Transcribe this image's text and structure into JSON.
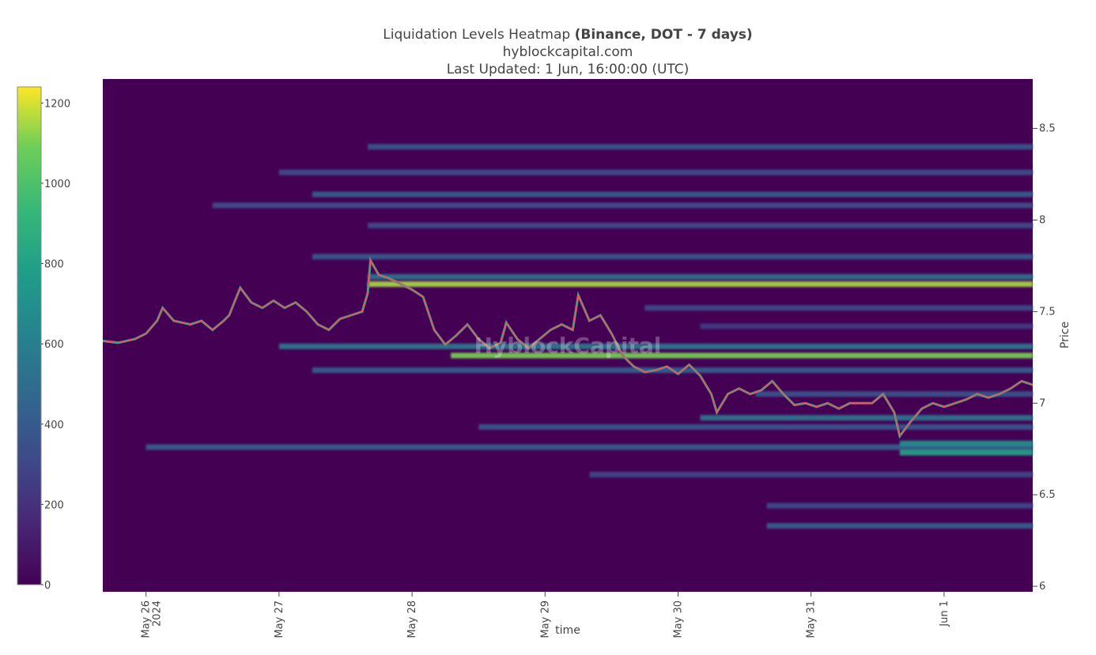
{
  "chart_data": {
    "type": "heatmap",
    "title": {
      "prefix": "Liquidation Levels Heatmap ",
      "bold": "(Binance, DOT - 7 days)",
      "line2": "hyblockcapital.com",
      "line3": "Last Updated: 1 Jun, 16:00:00 (UTC)"
    },
    "watermark": "HyblockCapital",
    "xlabel": "time",
    "ylabel": "Price",
    "x_ticks": [
      {
        "l1": "May 26",
        "l2": "2024",
        "t": 0
      },
      {
        "l1": "May 27",
        "l2": "",
        "t": 24
      },
      {
        "l1": "May 28",
        "l2": "",
        "t": 48
      },
      {
        "l1": "May 29",
        "l2": "",
        "t": 72
      },
      {
        "l1": "May 30",
        "l2": "",
        "t": 96
      },
      {
        "l1": "May 31",
        "l2": "",
        "t": 120
      },
      {
        "l1": "Jun 1",
        "l2": "",
        "t": 144
      }
    ],
    "y_ticks": [
      {
        "label": "6",
        "v": 6
      },
      {
        "label": "6.5",
        "v": 6.5
      },
      {
        "label": "7",
        "v": 7
      },
      {
        "label": "7.5",
        "v": 7.5
      },
      {
        "label": "8",
        "v": 8
      },
      {
        "label": "8.5",
        "v": 8.5
      }
    ],
    "xlim_hours_from_may26": [
      -7.8,
      160
    ],
    "ylim": [
      5.97,
      8.77
    ],
    "colorscale": {
      "name": "viridis",
      "range": [
        0,
        1240
      ],
      "ticks": [
        {
          "label": "0",
          "v": 0
        },
        {
          "label": "200",
          "v": 200
        },
        {
          "label": "400",
          "v": 400
        },
        {
          "label": "600",
          "v": 600
        },
        {
          "label": "800",
          "v": 800
        },
        {
          "label": "1000",
          "v": 1000
        },
        {
          "label": "1200",
          "v": 1200
        }
      ]
    },
    "price_path": [
      [
        -7.8,
        7.34
      ],
      [
        -5,
        7.33
      ],
      [
        -2,
        7.35
      ],
      [
        0,
        7.38
      ],
      [
        2,
        7.45
      ],
      [
        3,
        7.52
      ],
      [
        5,
        7.45
      ],
      [
        8,
        7.43
      ],
      [
        10,
        7.45
      ],
      [
        12,
        7.4
      ],
      [
        14,
        7.45
      ],
      [
        15,
        7.48
      ],
      [
        17,
        7.63
      ],
      [
        19,
        7.55
      ],
      [
        21,
        7.52
      ],
      [
        23,
        7.56
      ],
      [
        25,
        7.52
      ],
      [
        27,
        7.55
      ],
      [
        29,
        7.5
      ],
      [
        31,
        7.43
      ],
      [
        33,
        7.4
      ],
      [
        35,
        7.46
      ],
      [
        37,
        7.48
      ],
      [
        39,
        7.5
      ],
      [
        40,
        7.6
      ],
      [
        40.5,
        7.78
      ],
      [
        42,
        7.7
      ],
      [
        44,
        7.68
      ],
      [
        46,
        7.65
      ],
      [
        48,
        7.62
      ],
      [
        50,
        7.58
      ],
      [
        52,
        7.4
      ],
      [
        54,
        7.32
      ],
      [
        56,
        7.37
      ],
      [
        58,
        7.43
      ],
      [
        60,
        7.35
      ],
      [
        62,
        7.3
      ],
      [
        64,
        7.33
      ],
      [
        65,
        7.44
      ],
      [
        67,
        7.35
      ],
      [
        69,
        7.3
      ],
      [
        71,
        7.35
      ],
      [
        73,
        7.4
      ],
      [
        75,
        7.43
      ],
      [
        77,
        7.4
      ],
      [
        78,
        7.59
      ],
      [
        80,
        7.45
      ],
      [
        82,
        7.48
      ],
      [
        84,
        7.38
      ],
      [
        86,
        7.26
      ],
      [
        88,
        7.2
      ],
      [
        90,
        7.17
      ],
      [
        92,
        7.18
      ],
      [
        94,
        7.2
      ],
      [
        96,
        7.16
      ],
      [
        98,
        7.21
      ],
      [
        100,
        7.15
      ],
      [
        102,
        7.05
      ],
      [
        103,
        6.95
      ],
      [
        105,
        7.05
      ],
      [
        107,
        7.08
      ],
      [
        109,
        7.05
      ],
      [
        111,
        7.07
      ],
      [
        113,
        7.12
      ],
      [
        115,
        7.05
      ],
      [
        117,
        6.99
      ],
      [
        119,
        7.0
      ],
      [
        121,
        6.98
      ],
      [
        123,
        7.0
      ],
      [
        125,
        6.97
      ],
      [
        127,
        7.0
      ],
      [
        129,
        7.0
      ],
      [
        131,
        7.0
      ],
      [
        133,
        7.05
      ],
      [
        135,
        6.95
      ],
      [
        136,
        6.82
      ],
      [
        138,
        6.9
      ],
      [
        140,
        6.97
      ],
      [
        142,
        7.0
      ],
      [
        144,
        6.98
      ],
      [
        146,
        7.0
      ],
      [
        148,
        7.02
      ],
      [
        150,
        7.05
      ],
      [
        152,
        7.03
      ],
      [
        154,
        7.05
      ],
      [
        156,
        7.08
      ],
      [
        158,
        7.12
      ],
      [
        160,
        7.1
      ]
    ],
    "heat_bands": [
      {
        "price": 7.65,
        "start": 40,
        "intensity": 1150
      },
      {
        "price": 7.69,
        "start": 40,
        "intensity": 520
      },
      {
        "price": 7.26,
        "start": 55,
        "intensity": 1100
      },
      {
        "price": 7.31,
        "start": 24,
        "intensity": 560
      },
      {
        "price": 7.18,
        "start": 30,
        "intensity": 420
      },
      {
        "price": 6.76,
        "start": 0,
        "intensity": 420
      },
      {
        "price": 6.73,
        "start": 136,
        "intensity": 820
      },
      {
        "price": 6.78,
        "start": 136,
        "intensity": 720
      },
      {
        "price": 6.92,
        "start": 100,
        "intensity": 540
      },
      {
        "price": 6.87,
        "start": 60,
        "intensity": 380
      },
      {
        "price": 7.8,
        "start": 30,
        "intensity": 400
      },
      {
        "price": 8.14,
        "start": 30,
        "intensity": 420
      },
      {
        "price": 8.08,
        "start": 12,
        "intensity": 340
      },
      {
        "price": 8.4,
        "start": 40,
        "intensity": 380
      },
      {
        "price": 8.26,
        "start": 24,
        "intensity": 340
      },
      {
        "price": 7.97,
        "start": 40,
        "intensity": 330
      },
      {
        "price": 6.33,
        "start": 112,
        "intensity": 430
      },
      {
        "price": 6.44,
        "start": 112,
        "intensity": 320
      },
      {
        "price": 6.61,
        "start": 80,
        "intensity": 300
      },
      {
        "price": 7.52,
        "start": 90,
        "intensity": 320
      },
      {
        "price": 7.42,
        "start": 100,
        "intensity": 260
      },
      {
        "price": 7.05,
        "start": 110,
        "intensity": 360
      }
    ]
  }
}
